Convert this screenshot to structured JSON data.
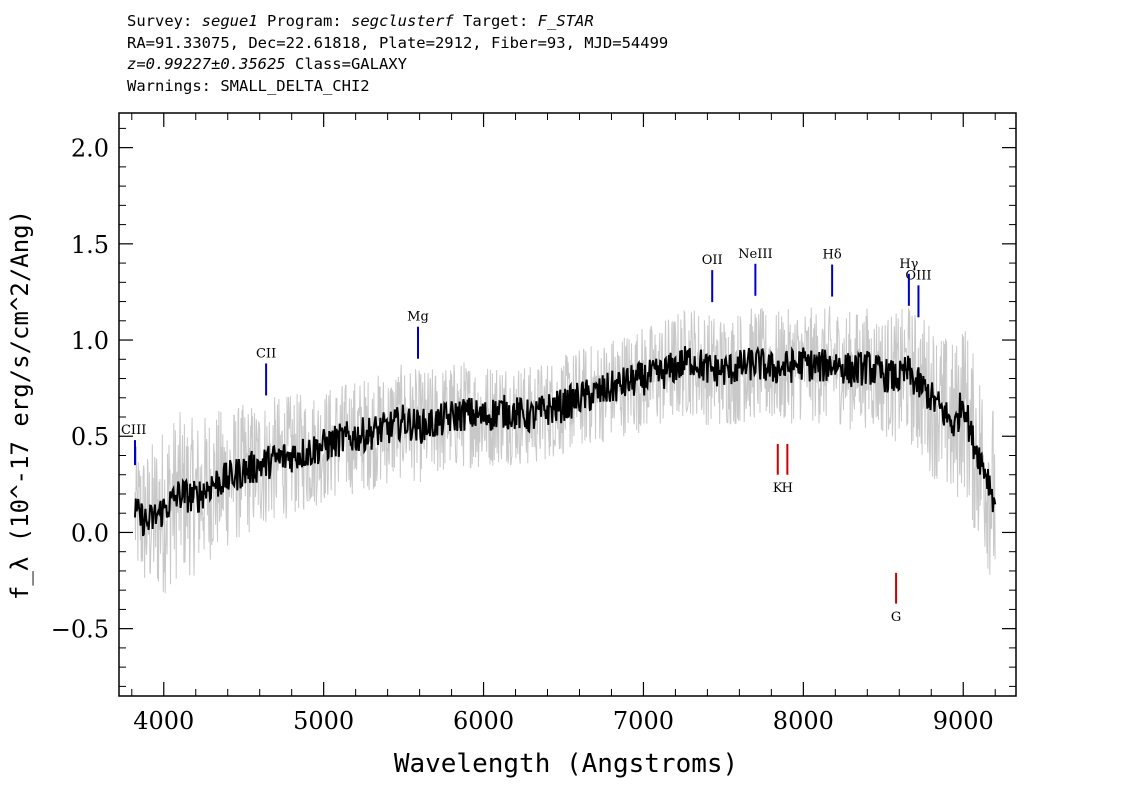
{
  "header": {
    "survey_label": "Survey:",
    "survey_value": "segue1",
    "program_label": "Program:",
    "program_value": "segclusterf",
    "target_label": "Target:",
    "target_value": "F_STAR",
    "line2": "RA=91.33075, Dec=22.61818, Plate=2912, Fiber=93, MJD=54499",
    "redshift": "z=0.99227±0.35625",
    "class_text": "Class=GALAXY",
    "warnings": "Warnings: SMALL_DELTA_CHI2"
  },
  "chart_data": {
    "type": "line",
    "xlabel": "Wavelength (Angstroms)",
    "ylabel": "f_λ (10^-17 erg/s/cm^2/Ang)",
    "xlim": [
      3720,
      9330
    ],
    "ylim": [
      -0.85,
      2.18
    ],
    "xticks": [
      4000,
      5000,
      6000,
      7000,
      8000,
      9000
    ],
    "yticks": [
      -0.5,
      0.0,
      0.5,
      1.0,
      1.5,
      2.0
    ],
    "xtick_labels": [
      "4000",
      "5000",
      "6000",
      "7000",
      "8000",
      "9000"
    ],
    "ytick_labels": [
      "−0.5",
      "0.0",
      "0.5",
      "1.0",
      "1.5",
      "2.0"
    ],
    "series": [
      {
        "role": "flux",
        "color": "#000000",
        "x": [
          3820,
          3900,
          4000,
          4100,
          4200,
          4300,
          4400,
          4500,
          4600,
          4700,
          4800,
          4900,
          5000,
          5100,
          5200,
          5300,
          5400,
          5500,
          5600,
          5700,
          5800,
          5900,
          6000,
          6100,
          6200,
          6300,
          6400,
          6500,
          6600,
          6700,
          6800,
          6900,
          7000,
          7100,
          7200,
          7300,
          7400,
          7500,
          7600,
          7700,
          7800,
          7900,
          8000,
          8100,
          8200,
          8300,
          8400,
          8500,
          8600,
          8650,
          8700,
          8750,
          8800,
          8850,
          8900,
          8950,
          9000,
          9050,
          9100,
          9150,
          9200
        ],
        "y": [
          0.1,
          0.05,
          0.12,
          0.2,
          0.18,
          0.25,
          0.28,
          0.32,
          0.35,
          0.38,
          0.4,
          0.42,
          0.45,
          0.48,
          0.5,
          0.52,
          0.54,
          0.58,
          0.55,
          0.57,
          0.6,
          0.62,
          0.6,
          0.63,
          0.62,
          0.6,
          0.64,
          0.66,
          0.7,
          0.72,
          0.75,
          0.78,
          0.8,
          0.82,
          0.86,
          0.9,
          0.85,
          0.84,
          0.86,
          0.88,
          0.85,
          0.86,
          0.88,
          0.86,
          0.88,
          0.84,
          0.86,
          0.82,
          0.8,
          0.84,
          0.78,
          0.75,
          0.7,
          0.65,
          0.6,
          0.55,
          0.7,
          0.5,
          0.4,
          0.3,
          0.15
        ]
      },
      {
        "role": "spread",
        "color": "#c8c8c8",
        "x": [
          3820,
          4000,
          4500,
          5000,
          5500,
          6000,
          6500,
          7000,
          7500,
          8000,
          8500,
          8800,
          9000,
          9200
        ],
        "y": [
          0.35,
          0.45,
          0.35,
          0.3,
          0.3,
          0.28,
          0.26,
          0.28,
          0.3,
          0.3,
          0.32,
          0.4,
          0.45,
          0.5
        ]
      }
    ],
    "annotations": [
      {
        "text": "CIII",
        "x": 3820,
        "color": "#0000cc"
      },
      {
        "text": "CII",
        "x": 4640,
        "color": "#0000cc"
      },
      {
        "text": "Mg",
        "x": 5590,
        "color": "#0000cc"
      },
      {
        "text": "OII",
        "x": 7430,
        "color": "#0000cc"
      },
      {
        "text": "NeIII",
        "x": 7700,
        "color": "#0000cc"
      },
      {
        "text": "Hδ",
        "x": 8180,
        "color": "#0000cc"
      },
      {
        "text": "Hγ",
        "x": 8660,
        "color": "#0000cc"
      },
      {
        "text": "OIII",
        "x": 8720,
        "color": "#0000cc"
      },
      {
        "text": "K",
        "x": 7840,
        "color": "#cc0000"
      },
      {
        "text": "H",
        "x": 7900,
        "color": "#cc0000"
      },
      {
        "text": "G",
        "x": 8580,
        "color": "#cc0000"
      }
    ]
  }
}
